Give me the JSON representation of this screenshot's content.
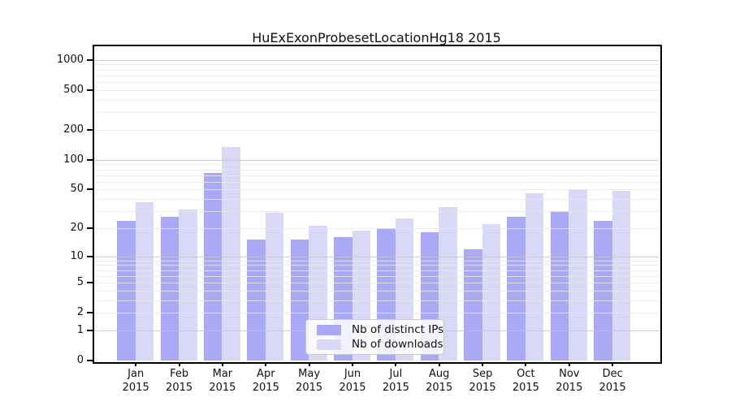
{
  "chart_data": {
    "type": "bar",
    "title": "HuExExonProbesetLocationHg18 2015",
    "categories": [
      "Jan",
      "Feb",
      "Mar",
      "Apr",
      "May",
      "Jun",
      "Jul",
      "Aug",
      "Sep",
      "Oct",
      "Nov",
      "Dec"
    ],
    "x_tick_second_line": "2015",
    "series": [
      {
        "name": "Nb of distinct IPs",
        "color": "#a9a9f5",
        "values": [
          24,
          26,
          74,
          15,
          15,
          16,
          20,
          18,
          12,
          26,
          30,
          24
        ]
      },
      {
        "name": "Nb of downloads",
        "color": "#d9d9f7",
        "values": [
          37,
          31,
          135,
          29,
          21,
          19,
          25,
          33,
          22,
          46,
          50,
          48
        ]
      }
    ],
    "y_axis": {
      "scale": "log10(1+x)",
      "tick_values": [
        0,
        1,
        2,
        5,
        10,
        20,
        50,
        100,
        200,
        500,
        1000
      ],
      "tick_labels": [
        "0",
        "1",
        "2",
        "5",
        "10",
        "20",
        "50",
        "100",
        "200",
        "500",
        "1000"
      ],
      "ylim": [
        0,
        1365
      ]
    },
    "grid": {
      "on": true,
      "major_values": [
        1,
        10,
        100,
        1000
      ],
      "minor_multiples": [
        2,
        3,
        4,
        5,
        6,
        7,
        8,
        9
      ]
    },
    "legend": {
      "position": "lower-center"
    }
  }
}
